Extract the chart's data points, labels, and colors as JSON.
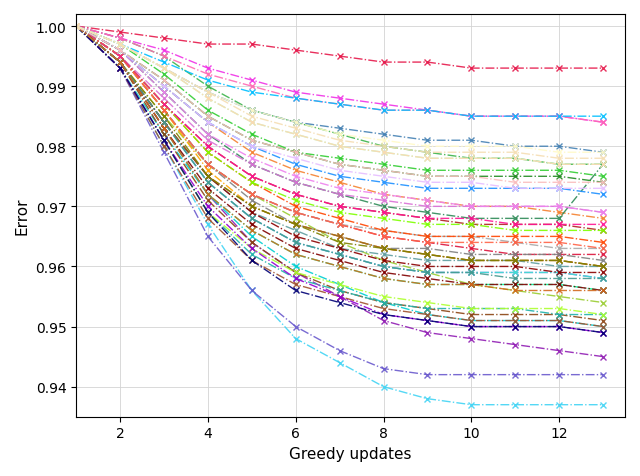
{
  "xlabel": "Greedy updates",
  "ylabel": "Error",
  "xlim": [
    1,
    13.5
  ],
  "ylim": [
    0.935,
    1.002
  ],
  "yticks": [
    0.94,
    0.95,
    0.96,
    0.97,
    0.98,
    0.99,
    1.0
  ],
  "xticks": [
    2,
    4,
    6,
    8,
    10,
    12
  ],
  "figsize": [
    6.4,
    4.77
  ],
  "dpi": 100,
  "series": [
    {
      "color": "#e6194b",
      "y": [
        1.0,
        0.999,
        0.998,
        0.997,
        0.997,
        0.996,
        0.995,
        0.994,
        0.994,
        0.993,
        0.993,
        0.993,
        0.993
      ]
    },
    {
      "color": "#3cb44b",
      "y": [
        1.0,
        0.998,
        0.995,
        0.99,
        0.986,
        0.984,
        0.982,
        0.98,
        0.979,
        0.978,
        0.978,
        0.977,
        0.977
      ]
    },
    {
      "color": "#4682b4",
      "y": [
        1.0,
        0.997,
        0.993,
        0.989,
        0.986,
        0.984,
        0.983,
        0.982,
        0.981,
        0.981,
        0.98,
        0.98,
        0.979
      ]
    },
    {
      "color": "#f58231",
      "y": [
        1.0,
        0.996,
        0.99,
        0.984,
        0.979,
        0.976,
        0.974,
        0.972,
        0.971,
        0.97,
        0.97,
        0.969,
        0.968
      ]
    },
    {
      "color": "#911eb4",
      "y": [
        1.0,
        0.994,
        0.983,
        0.972,
        0.964,
        0.959,
        0.955,
        0.951,
        0.949,
        0.948,
        0.947,
        0.946,
        0.945
      ]
    },
    {
      "color": "#42d4f4",
      "y": [
        1.0,
        0.993,
        0.98,
        0.967,
        0.956,
        0.948,
        0.944,
        0.94,
        0.938,
        0.937,
        0.937,
        0.937,
        0.937
      ]
    },
    {
      "color": "#f032e6",
      "y": [
        1.0,
        0.998,
        0.996,
        0.993,
        0.991,
        0.989,
        0.988,
        0.987,
        0.986,
        0.985,
        0.985,
        0.985,
        0.984
      ]
    },
    {
      "color": "#9acd32",
      "y": [
        1.0,
        0.994,
        0.985,
        0.977,
        0.972,
        0.968,
        0.964,
        0.961,
        0.959,
        0.957,
        0.956,
        0.955,
        0.954
      ]
    },
    {
      "color": "#00ced1",
      "y": [
        1.0,
        0.993,
        0.982,
        0.972,
        0.965,
        0.96,
        0.957,
        0.954,
        0.952,
        0.951,
        0.951,
        0.951,
        0.95
      ]
    },
    {
      "color": "#ff69b4",
      "y": [
        1.0,
        0.998,
        0.995,
        0.992,
        0.99,
        0.988,
        0.987,
        0.986,
        0.986,
        0.985,
        0.985,
        0.985,
        0.984
      ]
    },
    {
      "color": "#8b4513",
      "y": [
        1.0,
        0.994,
        0.982,
        0.971,
        0.964,
        0.959,
        0.956,
        0.954,
        0.953,
        0.952,
        0.952,
        0.952,
        0.951
      ]
    },
    {
      "color": "#2e8b57",
      "y": [
        1.0,
        0.996,
        0.989,
        0.982,
        0.977,
        0.974,
        0.972,
        0.97,
        0.969,
        0.968,
        0.968,
        0.968,
        0.977
      ]
    },
    {
      "color": "#dc143c",
      "y": [
        1.0,
        0.995,
        0.986,
        0.977,
        0.972,
        0.969,
        0.967,
        0.965,
        0.964,
        0.963,
        0.962,
        0.962,
        0.962
      ]
    },
    {
      "color": "#808080",
      "y": [
        1.0,
        0.995,
        0.986,
        0.977,
        0.971,
        0.967,
        0.965,
        0.963,
        0.963,
        0.962,
        0.962,
        0.962,
        0.961
      ]
    },
    {
      "color": "#a9a9a9",
      "y": [
        1.0,
        0.995,
        0.986,
        0.977,
        0.972,
        0.969,
        0.967,
        0.966,
        0.965,
        0.965,
        0.964,
        0.963,
        0.963
      ]
    },
    {
      "color": "#ffa500",
      "y": [
        1.0,
        0.995,
        0.986,
        0.976,
        0.97,
        0.967,
        0.965,
        0.963,
        0.962,
        0.961,
        0.961,
        0.961,
        0.96
      ]
    },
    {
      "color": "#6a5acd",
      "y": [
        1.0,
        0.993,
        0.979,
        0.965,
        0.956,
        0.95,
        0.946,
        0.943,
        0.942,
        0.942,
        0.942,
        0.942,
        0.942
      ]
    },
    {
      "color": "#20b2aa",
      "y": [
        1.0,
        0.993,
        0.981,
        0.969,
        0.962,
        0.958,
        0.956,
        0.954,
        0.953,
        0.953,
        0.953,
        0.952,
        0.952
      ]
    },
    {
      "color": "#b22222",
      "y": [
        1.0,
        0.995,
        0.987,
        0.98,
        0.975,
        0.972,
        0.97,
        0.969,
        0.968,
        0.967,
        0.967,
        0.967,
        0.966
      ]
    },
    {
      "color": "#32cd32",
      "y": [
        1.0,
        0.997,
        0.992,
        0.986,
        0.982,
        0.979,
        0.978,
        0.977,
        0.976,
        0.976,
        0.976,
        0.976,
        0.975
      ]
    },
    {
      "color": "#ff4500",
      "y": [
        1.0,
        0.995,
        0.987,
        0.979,
        0.974,
        0.97,
        0.968,
        0.966,
        0.965,
        0.965,
        0.965,
        0.965,
        0.964
      ]
    },
    {
      "color": "#da70d6",
      "y": [
        1.0,
        0.995,
        0.988,
        0.981,
        0.977,
        0.974,
        0.972,
        0.971,
        0.97,
        0.97,
        0.97,
        0.97,
        0.969
      ]
    },
    {
      "color": "#7b68ee",
      "y": [
        1.0,
        0.994,
        0.984,
        0.974,
        0.968,
        0.964,
        0.962,
        0.96,
        0.959,
        0.959,
        0.959,
        0.959,
        0.958
      ]
    },
    {
      "color": "#00fa9a",
      "y": [
        1.0,
        0.994,
        0.983,
        0.972,
        0.966,
        0.962,
        0.96,
        0.958,
        0.957,
        0.957,
        0.957,
        0.957,
        0.956
      ]
    },
    {
      "color": "#adff2f",
      "y": [
        1.0,
        0.993,
        0.981,
        0.969,
        0.963,
        0.959,
        0.957,
        0.955,
        0.954,
        0.953,
        0.953,
        0.953,
        0.952
      ]
    },
    {
      "color": "#ff6347",
      "y": [
        1.0,
        0.995,
        0.986,
        0.977,
        0.972,
        0.969,
        0.967,
        0.965,
        0.964,
        0.964,
        0.964,
        0.964,
        0.963
      ]
    },
    {
      "color": "#40e0d0",
      "y": [
        1.0,
        0.994,
        0.984,
        0.974,
        0.968,
        0.964,
        0.962,
        0.96,
        0.959,
        0.959,
        0.959,
        0.959,
        0.958
      ]
    },
    {
      "color": "#ee82ee",
      "y": [
        1.0,
        0.996,
        0.989,
        0.982,
        0.978,
        0.975,
        0.973,
        0.972,
        0.971,
        0.97,
        0.97,
        0.97,
        0.969
      ]
    },
    {
      "color": "#a0522d",
      "y": [
        1.0,
        0.993,
        0.98,
        0.968,
        0.961,
        0.957,
        0.955,
        0.953,
        0.952,
        0.951,
        0.951,
        0.951,
        0.95
      ]
    },
    {
      "color": "#5f9ea0",
      "y": [
        1.0,
        0.994,
        0.984,
        0.975,
        0.969,
        0.966,
        0.963,
        0.962,
        0.961,
        0.961,
        0.961,
        0.96,
        0.96
      ]
    },
    {
      "color": "#7fff00",
      "y": [
        1.0,
        0.995,
        0.987,
        0.979,
        0.974,
        0.971,
        0.969,
        0.968,
        0.967,
        0.967,
        0.966,
        0.966,
        0.966
      ]
    },
    {
      "color": "#ff1493",
      "y": [
        1.0,
        0.995,
        0.987,
        0.98,
        0.975,
        0.972,
        0.97,
        0.969,
        0.968,
        0.968,
        0.967,
        0.967,
        0.967
      ]
    },
    {
      "color": "#1e90ff",
      "y": [
        1.0,
        0.996,
        0.99,
        0.984,
        0.98,
        0.977,
        0.975,
        0.974,
        0.973,
        0.973,
        0.973,
        0.973,
        0.972
      ]
    },
    {
      "color": "#228b22",
      "y": [
        1.0,
        0.996,
        0.991,
        0.985,
        0.981,
        0.979,
        0.977,
        0.976,
        0.975,
        0.975,
        0.975,
        0.975,
        0.974
      ]
    },
    {
      "color": "#8b0000",
      "y": [
        1.0,
        0.994,
        0.984,
        0.975,
        0.969,
        0.965,
        0.963,
        0.961,
        0.96,
        0.96,
        0.96,
        0.959,
        0.959
      ]
    },
    {
      "color": "#9400d3",
      "y": [
        1.0,
        0.993,
        0.981,
        0.97,
        0.963,
        0.958,
        0.955,
        0.952,
        0.951,
        0.95,
        0.95,
        0.95,
        0.949
      ]
    },
    {
      "color": "#00bfff",
      "y": [
        1.0,
        0.997,
        0.994,
        0.991,
        0.989,
        0.988,
        0.987,
        0.986,
        0.986,
        0.985,
        0.985,
        0.985,
        0.985
      ]
    },
    {
      "color": "#9A6324",
      "y": [
        1.0,
        0.994,
        0.984,
        0.975,
        0.97,
        0.967,
        0.965,
        0.963,
        0.962,
        0.961,
        0.961,
        0.961,
        0.96
      ]
    },
    {
      "color": "#800000",
      "y": [
        1.0,
        0.994,
        0.983,
        0.973,
        0.967,
        0.963,
        0.961,
        0.959,
        0.958,
        0.957,
        0.957,
        0.957,
        0.956
      ]
    },
    {
      "color": "#808000",
      "y": [
        1.0,
        0.994,
        0.985,
        0.975,
        0.97,
        0.967,
        0.964,
        0.963,
        0.962,
        0.961,
        0.961,
        0.961,
        0.96
      ]
    },
    {
      "color": "#000075",
      "y": [
        1.0,
        0.993,
        0.981,
        0.969,
        0.961,
        0.956,
        0.954,
        0.952,
        0.951,
        0.95,
        0.95,
        0.95,
        0.949
      ]
    },
    {
      "color": "#469990",
      "y": [
        1.0,
        0.994,
        0.984,
        0.974,
        0.968,
        0.964,
        0.962,
        0.96,
        0.959,
        0.959,
        0.958,
        0.958,
        0.958
      ]
    },
    {
      "color": "#d2691e",
      "y": [
        1.0,
        0.994,
        0.983,
        0.972,
        0.966,
        0.962,
        0.96,
        0.958,
        0.957,
        0.957,
        0.956,
        0.956,
        0.956
      ]
    },
    {
      "color": "#e6beff",
      "y": [
        1.0,
        0.996,
        0.99,
        0.984,
        0.98,
        0.978,
        0.976,
        0.975,
        0.974,
        0.974,
        0.973,
        0.973,
        0.973
      ]
    },
    {
      "color": "#aaffc3",
      "y": [
        1.0,
        0.997,
        0.993,
        0.988,
        0.984,
        0.982,
        0.98,
        0.979,
        0.978,
        0.978,
        0.978,
        0.977,
        0.977
      ]
    },
    {
      "color": "#ffd8b1",
      "y": [
        1.0,
        0.997,
        0.993,
        0.988,
        0.984,
        0.982,
        0.98,
        0.979,
        0.978,
        0.978,
        0.978,
        0.977,
        0.977
      ]
    },
    {
      "color": "#fabebe",
      "y": [
        1.0,
        0.996,
        0.991,
        0.985,
        0.981,
        0.979,
        0.977,
        0.976,
        0.975,
        0.975,
        0.974,
        0.974,
        0.974
      ]
    },
    {
      "color": "#fffac8",
      "y": [
        1.0,
        0.997,
        0.993,
        0.989,
        0.986,
        0.984,
        0.982,
        0.981,
        0.98,
        0.98,
        0.98,
        0.979,
        0.979
      ]
    },
    {
      "color": "#f5deb3",
      "y": [
        1.0,
        0.997,
        0.993,
        0.989,
        0.985,
        0.983,
        0.981,
        0.98,
        0.979,
        0.979,
        0.979,
        0.978,
        0.978
      ]
    }
  ]
}
